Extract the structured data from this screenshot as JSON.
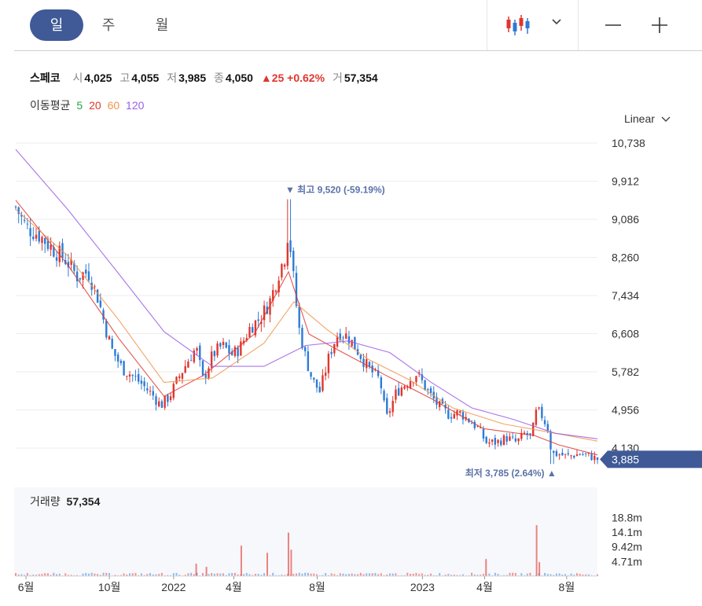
{
  "tabs": [
    "일",
    "주",
    "월"
  ],
  "active_tab": 0,
  "toolbar": {
    "chart_type_icon": "candlestick-icon",
    "dropdown_icon": "chevron-down-icon",
    "zoom_out_icon": "minus-icon",
    "zoom_in_icon": "plus-icon"
  },
  "quote": {
    "name": "스페코",
    "open_label": "시",
    "open": "4,025",
    "high_label": "고",
    "high": "4,055",
    "low_label": "저",
    "low": "3,985",
    "close_label": "종",
    "close": "4,050",
    "change": "▲25",
    "change_pct": "+0.62%",
    "volume_label": "거",
    "volume": "57,354"
  },
  "ma": {
    "label": "이동평균",
    "periods": [
      "5",
      "20",
      "60",
      "120"
    ],
    "colors": [
      "#27a844",
      "#e0362e",
      "#f0954a",
      "#9b5de5"
    ]
  },
  "scale_label": "Linear",
  "volume_panel": {
    "label": "거래량",
    "value": "57,354"
  },
  "colors": {
    "up": "#e0362e",
    "down": "#2c7bd6",
    "accent": "#3f5a96",
    "annot": "#5a72a8",
    "grid": "#eeeeee"
  },
  "chart_data": {
    "type": "candlestick",
    "price_axis": {
      "ticks": [
        "10,738",
        "9,912",
        "9,086",
        "8,260",
        "7,434",
        "6,608",
        "5,782",
        "4,956",
        "4,130"
      ],
      "ylim": [
        3620,
        10738
      ]
    },
    "current_price": "3,885",
    "max_annotation": {
      "text": "최고 9,520 (-59.19%)",
      "value": 9520,
      "date": "2022-06-20"
    },
    "min_annotation": {
      "text": "최저 3,785 (2.64%)",
      "value": 3785,
      "date": "2023-07-10"
    },
    "x_ticks": [
      "6월",
      "10월",
      "2022",
      "4월",
      "8월",
      "2023",
      "4월",
      "8월"
    ],
    "x_tick_dates": [
      "2021-06-01",
      "2021-10-01",
      "2022-01-03",
      "2022-04-01",
      "2022-08-01",
      "2023-01-02",
      "2023-04-03",
      "2023-08-01"
    ],
    "date_range": [
      "2021-05-17",
      "2023-09-15"
    ],
    "price_path": [
      [
        "2021-05-17",
        9350
      ],
      [
        "2021-06-01",
        8920
      ],
      [
        "2021-06-20",
        8750
      ],
      [
        "2021-07-10",
        8450
      ],
      [
        "2021-07-30",
        8200
      ],
      [
        "2021-08-15",
        7850
      ],
      [
        "2021-08-31",
        7950
      ],
      [
        "2021-09-15",
        7350
      ],
      [
        "2021-09-25",
        6750
      ],
      [
        "2021-10-05",
        6250
      ],
      [
        "2021-10-20",
        5850
      ],
      [
        "2021-10-30",
        5750
      ],
      [
        "2021-11-15",
        5550
      ],
      [
        "2021-12-05",
        5250
      ],
      [
        "2021-12-15",
        5050
      ],
      [
        "2021-12-28",
        5250
      ],
      [
        "2022-01-10",
        5650
      ],
      [
        "2022-01-25",
        6050
      ],
      [
        "2022-02-05",
        6300
      ],
      [
        "2022-02-15",
        5600
      ],
      [
        "2022-03-01",
        6150
      ],
      [
        "2022-03-15",
        6350
      ],
      [
        "2022-03-30",
        6150
      ],
      [
        "2022-04-10",
        6300
      ],
      [
        "2022-04-25",
        6750
      ],
      [
        "2022-05-10",
        6950
      ],
      [
        "2022-05-25",
        7350
      ],
      [
        "2022-06-05",
        7900
      ],
      [
        "2022-06-15",
        8300
      ],
      [
        "2022-06-20",
        8900
      ],
      [
        "2022-06-28",
        7700
      ],
      [
        "2022-07-05",
        6750
      ],
      [
        "2022-07-15",
        6100
      ],
      [
        "2022-07-25",
        5600
      ],
      [
        "2022-08-05",
        5350
      ],
      [
        "2022-08-20",
        6200
      ],
      [
        "2022-09-01",
        6650
      ],
      [
        "2022-09-15",
        6550
      ],
      [
        "2022-10-01",
        6200
      ],
      [
        "2022-10-15",
        5850
      ],
      [
        "2022-11-01",
        5600
      ],
      [
        "2022-11-10",
        4750
      ],
      [
        "2022-11-25",
        5350
      ],
      [
        "2022-12-10",
        5550
      ],
      [
        "2022-12-25",
        5750
      ],
      [
        "2023-01-10",
        5350
      ],
      [
        "2023-01-25",
        5050
      ],
      [
        "2023-02-10",
        4850
      ],
      [
        "2023-02-25",
        4900
      ],
      [
        "2023-03-10",
        4750
      ],
      [
        "2023-03-25",
        4550
      ],
      [
        "2023-04-05",
        4250
      ],
      [
        "2023-04-20",
        4250
      ],
      [
        "2023-05-05",
        4350
      ],
      [
        "2023-05-20",
        4250
      ],
      [
        "2023-06-01",
        4450
      ],
      [
        "2023-06-10",
        4350
      ],
      [
        "2023-06-18",
        4950
      ],
      [
        "2023-06-25",
        4850
      ],
      [
        "2023-07-05",
        4550
      ],
      [
        "2023-07-10",
        4000
      ],
      [
        "2023-07-20",
        4000
      ],
      [
        "2023-08-01",
        3950
      ],
      [
        "2023-08-20",
        4000
      ],
      [
        "2023-09-05",
        3950
      ],
      [
        "2023-09-15",
        3885
      ]
    ],
    "ma_series": [
      {
        "period": 20,
        "color": "#e0362e",
        "points": [
          [
            "2021-05-17",
            9500
          ],
          [
            "2021-08-01",
            8100
          ],
          [
            "2021-10-15",
            6500
          ],
          [
            "2021-12-20",
            5250
          ],
          [
            "2022-02-15",
            5700
          ],
          [
            "2022-05-01",
            6600
          ],
          [
            "2022-06-20",
            7950
          ],
          [
            "2022-07-20",
            6600
          ],
          [
            "2022-09-01",
            6250
          ],
          [
            "2022-11-10",
            5700
          ],
          [
            "2023-01-15",
            5200
          ],
          [
            "2023-04-01",
            4550
          ],
          [
            "2023-06-15",
            4400
          ],
          [
            "2023-07-20",
            4200
          ],
          [
            "2023-09-15",
            3980
          ]
        ]
      },
      {
        "period": 60,
        "color": "#f0954a",
        "points": [
          [
            "2021-05-17",
            9300
          ],
          [
            "2021-08-01",
            8300
          ],
          [
            "2021-10-15",
            6900
          ],
          [
            "2021-12-20",
            5550
          ],
          [
            "2022-03-01",
            5650
          ],
          [
            "2022-05-15",
            6400
          ],
          [
            "2022-06-28",
            7300
          ],
          [
            "2022-08-15",
            6700
          ],
          [
            "2022-10-15",
            6050
          ],
          [
            "2022-12-15",
            5600
          ],
          [
            "2023-02-15",
            5000
          ],
          [
            "2023-05-01",
            4650
          ],
          [
            "2023-07-15",
            4450
          ],
          [
            "2023-09-15",
            4280
          ]
        ]
      },
      {
        "period": 120,
        "color": "#9b5de5",
        "points": [
          [
            "2021-05-17",
            10600
          ],
          [
            "2021-08-01",
            9300
          ],
          [
            "2021-10-15",
            7900
          ],
          [
            "2021-12-20",
            6650
          ],
          [
            "2022-03-01",
            5900
          ],
          [
            "2022-05-15",
            5900
          ],
          [
            "2022-07-15",
            6350
          ],
          [
            "2022-09-15",
            6450
          ],
          [
            "2022-11-15",
            6200
          ],
          [
            "2023-01-15",
            5550
          ],
          [
            "2023-03-15",
            5000
          ],
          [
            "2023-05-15",
            4750
          ],
          [
            "2023-07-15",
            4450
          ],
          [
            "2023-09-15",
            4330
          ]
        ]
      }
    ],
    "volume_axis": {
      "ticks": [
        "18.8m",
        "14.1m",
        "9.42m",
        "4.71m"
      ],
      "ylim": [
        0,
        23500000
      ]
    },
    "volume_spikes": [
      [
        "2022-02-05",
        4000000
      ],
      [
        "2022-02-20",
        3000000
      ],
      [
        "2022-04-12",
        9800000
      ],
      [
        "2022-05-20",
        7500000
      ],
      [
        "2022-06-20",
        14000000
      ],
      [
        "2022-06-24",
        8500000
      ],
      [
        "2023-04-05",
        5500000
      ],
      [
        "2023-06-18",
        16400000
      ],
      [
        "2023-06-22",
        4500000
      ]
    ]
  }
}
